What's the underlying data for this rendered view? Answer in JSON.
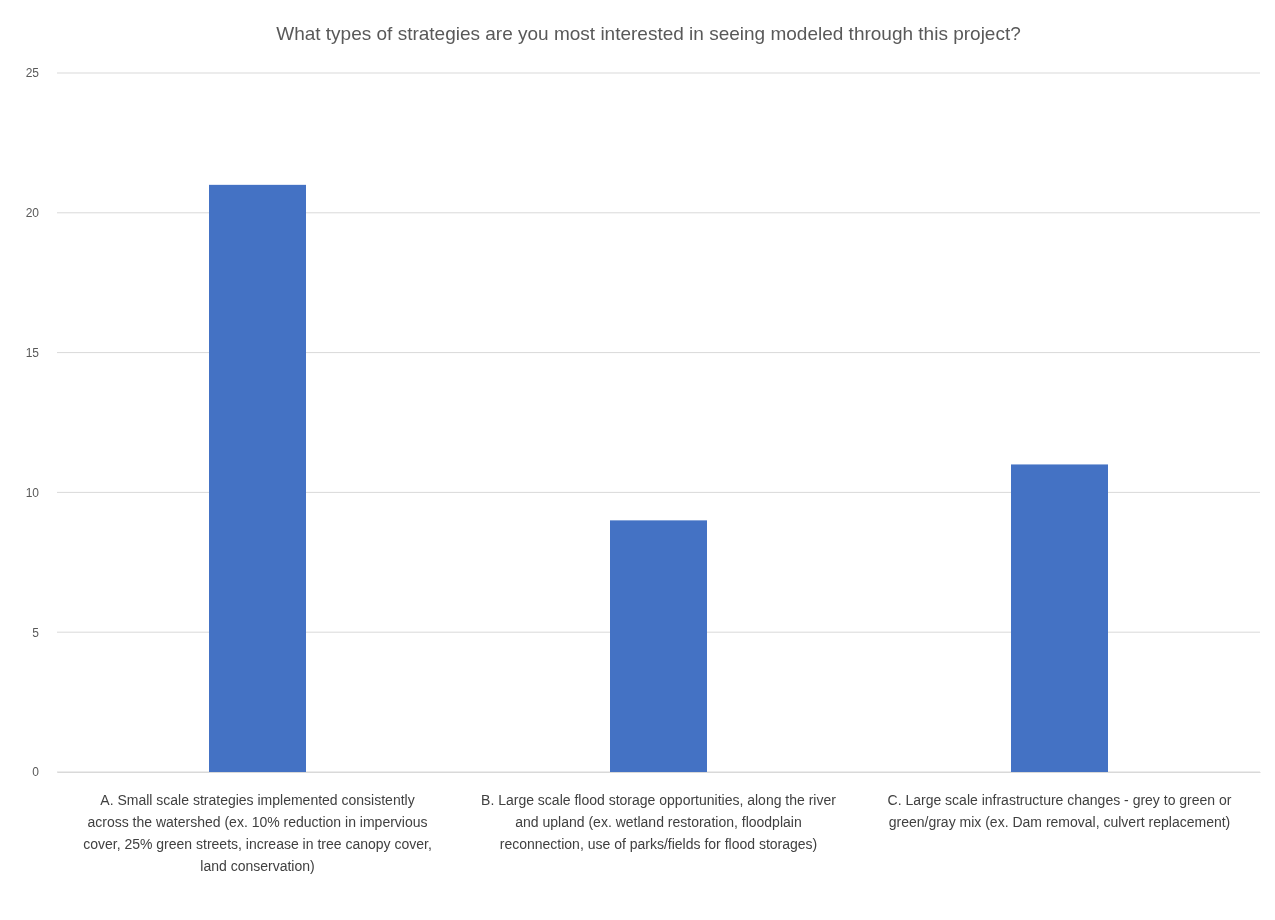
{
  "chart_data": {
    "type": "bar",
    "title": "What types of strategies are you most interested in seeing modeled through this project?",
    "categories": [
      "A. Small scale strategies implemented consistently across the watershed (ex. 10% reduction in impervious cover, 25% green streets, increase in tree canopy cover, land conservation)",
      "B. Large scale flood storage opportunities, along the river and upland (ex. wetland restoration, floodplain reconnection, use of parks/fields for flood storages)",
      "C. Large scale infrastructure changes - grey to green or green/gray mix (ex. Dam removal, culvert replacement)"
    ],
    "values": [
      21,
      9,
      11
    ],
    "color": "#4472c4",
    "ylim": [
      0,
      25
    ],
    "yticks": [
      0,
      5,
      10,
      15,
      20,
      25
    ],
    "grid": "y"
  }
}
